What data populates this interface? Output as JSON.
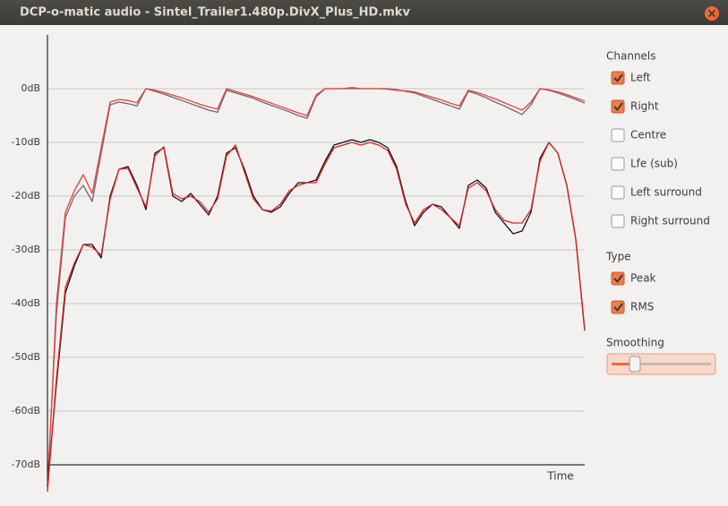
{
  "window": {
    "title": "DCP-o-matic audio - Sintel_Trailer1.480p.DivX_Plus_HD.mkv"
  },
  "chart_data": {
    "type": "line",
    "x_label": "Time",
    "ylim": [
      -70,
      10
    ],
    "yticks": [
      {
        "value": 0,
        "label": "0dB"
      },
      {
        "value": -10,
        "label": "-10dB"
      },
      {
        "value": -20,
        "label": "-20dB"
      },
      {
        "value": -30,
        "label": "-30dB"
      },
      {
        "value": -40,
        "label": "-40dB"
      },
      {
        "value": -50,
        "label": "-50dB"
      },
      {
        "value": -60,
        "label": "-60dB"
      },
      {
        "value": -70,
        "label": "-70dB"
      }
    ],
    "grid": true,
    "series": [
      {
        "color": "#6a6a6a",
        "values": [
          -74,
          -42,
          -24,
          -20,
          -18,
          -21,
          -12,
          -3,
          -2.5,
          -2.8,
          -3.2,
          0,
          -0.5,
          -1,
          -1.6,
          -2.2,
          -2.8,
          -3.4,
          -4,
          -4.4,
          -0.3,
          -0.8,
          -1.3,
          -1.8,
          -2.5,
          -3.1,
          -3.7,
          -4.3,
          -5,
          -5.5,
          -1.5,
          0,
          0,
          0,
          0.2,
          0,
          0,
          0,
          0,
          -0.2,
          -0.5,
          -0.8,
          -1.4,
          -2,
          -2.6,
          -3.2,
          -3.8,
          -0.5,
          -1,
          -1.7,
          -2.5,
          -3.2,
          -4,
          -4.8,
          -3,
          0,
          -0.3,
          -0.8,
          -1.4,
          -2,
          -2.7
        ]
      },
      {
        "color": "#e8403a",
        "values": [
          -75,
          -40,
          -23,
          -19,
          -16,
          -19.5,
          -11,
          -2.5,
          -2,
          -2.2,
          -2.6,
          0,
          -0.3,
          -0.7,
          -1.2,
          -1.7,
          -2.3,
          -2.9,
          -3.4,
          -3.8,
          0,
          -0.5,
          -1,
          -1.5,
          -2.1,
          -2.7,
          -3.3,
          -3.9,
          -4.5,
          -5,
          -1.2,
          0,
          0,
          0,
          0,
          0,
          0,
          0,
          -0.1,
          -0.3,
          -0.4,
          -0.6,
          -1.1,
          -1.6,
          -2.1,
          -2.7,
          -3.2,
          -0.3,
          -0.7,
          -1.3,
          -1.9,
          -2.6,
          -3.3,
          -4,
          -2.5,
          0,
          -0.2,
          -0.6,
          -1.1,
          -1.7,
          -2.3
        ]
      },
      {
        "color": "#111111",
        "values": [
          -74,
          -55,
          -38,
          -33,
          -29,
          -29,
          -31.5,
          -20,
          -15,
          -14.5,
          -18,
          -22.5,
          -12,
          -11,
          -20,
          -21,
          -19.5,
          -21.5,
          -23.5,
          -20,
          -12,
          -11,
          -15,
          -20,
          -22.5,
          -23,
          -22,
          -19.5,
          -17.5,
          -17.5,
          -17,
          -13.5,
          -10.5,
          -10,
          -9.5,
          -10,
          -9.5,
          -10,
          -11,
          -14.5,
          -21,
          -25.5,
          -23,
          -21.5,
          -22,
          -24,
          -26,
          -18,
          -17,
          -18.5,
          -23,
          -25,
          -27,
          -26.5,
          -23,
          -13,
          -10,
          -12,
          -18,
          -28,
          -45
        ]
      },
      {
        "color": "#d8231f",
        "values": [
          -75,
          -54,
          -37,
          -32.5,
          -29,
          -29.5,
          -31,
          -20.5,
          -15,
          -14.8,
          -18.5,
          -22,
          -12.5,
          -10.8,
          -19.5,
          -20.5,
          -20,
          -21,
          -23,
          -20.5,
          -12.5,
          -10.5,
          -15.5,
          -20.5,
          -22.5,
          -22.8,
          -21.5,
          -19,
          -18,
          -17.5,
          -17.5,
          -14,
          -11,
          -10.5,
          -10,
          -10.5,
          -10,
          -10.5,
          -11.5,
          -15,
          -21.5,
          -25,
          -22.5,
          -21.5,
          -22.5,
          -24,
          -25.5,
          -18.5,
          -17.5,
          -19,
          -22.5,
          -24.5,
          -25,
          -25,
          -22.5,
          -13.5,
          -10,
          -12,
          -18,
          -28,
          -45
        ]
      }
    ]
  },
  "panel": {
    "channels": {
      "title": "Channels",
      "options": [
        {
          "label": "Left",
          "checked": true
        },
        {
          "label": "Right",
          "checked": true
        },
        {
          "label": "Centre",
          "checked": false
        },
        {
          "label": "Lfe (sub)",
          "checked": false
        },
        {
          "label": "Left surround",
          "checked": false
        },
        {
          "label": "Right surround",
          "checked": false
        }
      ]
    },
    "type": {
      "title": "Type",
      "options": [
        {
          "label": "Peak",
          "checked": true
        },
        {
          "label": "RMS",
          "checked": true
        }
      ]
    },
    "smoothing": {
      "title": "Smoothing"
    }
  }
}
